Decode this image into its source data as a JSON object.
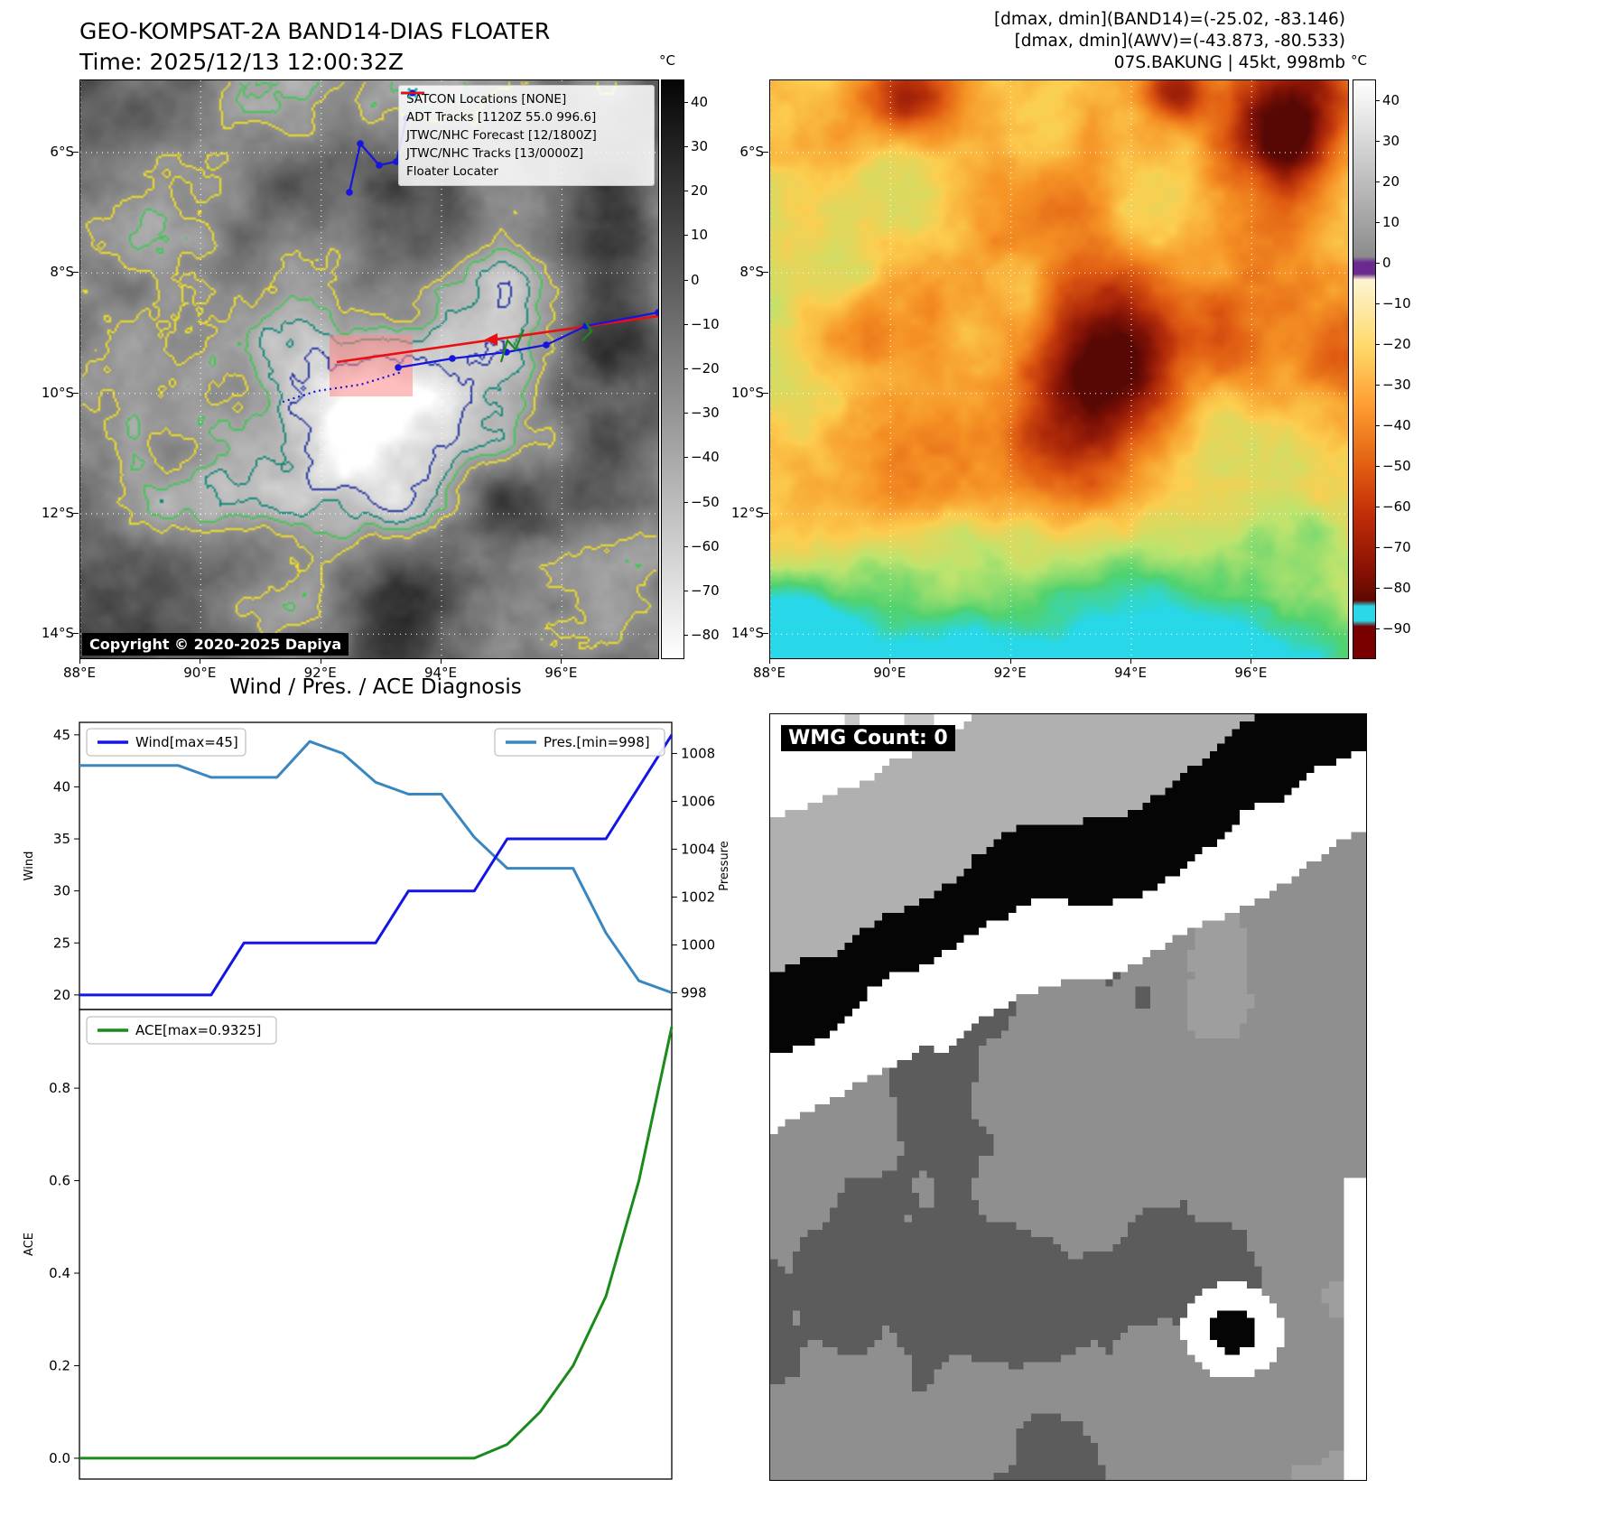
{
  "panel1": {
    "title": "GEO-KOMPSAT-2A BAND14-DIAS FLOATER",
    "time_line": "Time: 2025/12/13 12:00:32Z",
    "copyright": "Copyright © 2020-2025 Dapiya",
    "colorbar_unit": "°C",
    "colorbar_ticks": [
      40,
      30,
      20,
      10,
      0,
      -10,
      -20,
      -30,
      -40,
      -50,
      -60,
      -70,
      -80
    ],
    "x_tick_labels": [
      "88°E",
      "90°E",
      "92°E",
      "94°E",
      "96°E"
    ],
    "y_tick_labels": [
      "6°S",
      "8°S",
      "10°S",
      "12°S",
      "14°S"
    ],
    "contour_colors": [
      "#f0e020",
      "#3cc850",
      "#0e8676",
      "#1e30a0"
    ],
    "legend": [
      {
        "label": "SATCON Locations [NONE]",
        "marker": "x-marker",
        "color": "#2ab5b5"
      },
      {
        "label": "ADT Tracks [1120Z 55.0 996.6]",
        "marker": "solid-line",
        "color": "#1a8a1a"
      },
      {
        "label": "JTWC/NHC Forecast [12/1800Z]",
        "marker": "dotted-line",
        "color": "#1515dd"
      },
      {
        "label": "JTWC/NHC Tracks [13/0000Z]",
        "marker": "line-dot",
        "color": "#1515dd"
      },
      {
        "label": "Floater Locater",
        "marker": "solid-line",
        "color": "#e81010"
      }
    ]
  },
  "panel2": {
    "annotation_lines": [
      "[dmax, dmin](BAND14)=(-25.02, -83.146)",
      "[dmax, dmin](AWV)=(-43.873, -80.533)",
      "07S.BAKUNG | 45kt, 998mb"
    ],
    "colorbar_unit": "°C",
    "colorbar_ticks": [
      40,
      30,
      20,
      10,
      0,
      -10,
      -20,
      -30,
      -40,
      -50,
      -60,
      -70,
      -80,
      -90
    ],
    "x_tick_labels": [
      "88°E",
      "90°E",
      "92°E",
      "94°E",
      "96°E"
    ],
    "y_tick_labels": [
      "6°S",
      "8°S",
      "10°S",
      "12°S",
      "14°S"
    ]
  },
  "charts_title": "Wind / Pres. / ACE Diagnosis",
  "wmg_label": "WMG Count: 0",
  "chart_data": [
    {
      "type": "line",
      "title": "Wind / Pres. / ACE Diagnosis",
      "x": [
        0,
        1,
        2,
        3,
        4,
        5,
        6,
        7,
        8,
        9,
        10,
        11,
        12,
        13,
        14,
        15,
        16,
        17,
        18
      ],
      "series": [
        {
          "name": "Wind[max=45]",
          "axis": "left",
          "color": "#1414e6",
          "values": [
            20,
            20,
            20,
            20,
            20,
            25,
            25,
            25,
            25,
            25,
            30,
            30,
            30,
            35,
            35,
            35,
            35,
            40,
            45
          ]
        },
        {
          "name": "Pres.[min=998]",
          "axis": "right",
          "color": "#3a87c0",
          "values": [
            1007.5,
            1007.5,
            1007.5,
            1007.5,
            1007,
            1007,
            1007,
            1008.5,
            1008,
            1006.8,
            1006.3,
            1006.3,
            1004.5,
            1003.2,
            1003.2,
            1003.2,
            1000.5,
            998.5,
            998
          ]
        }
      ],
      "ylabel_left": "Wind",
      "ylabel_right": "Pressure",
      "yticks_left": [
        20,
        25,
        30,
        35,
        40,
        45
      ],
      "yticks_right": [
        998,
        1000,
        1002,
        1004,
        1006,
        1008
      ],
      "ylim_left": [
        18.6,
        46.2
      ],
      "ylim_right": [
        997.3,
        1009.3
      ],
      "legend_position": "upper-left / upper-right"
    },
    {
      "type": "line",
      "x": [
        0,
        1,
        2,
        3,
        4,
        5,
        6,
        7,
        8,
        9,
        10,
        11,
        12,
        13,
        14,
        15,
        16,
        17,
        18
      ],
      "series": [
        {
          "name": "ACE[max=0.9325]",
          "color": "#1a8a1a",
          "values": [
            0,
            0,
            0,
            0,
            0,
            0,
            0,
            0,
            0,
            0,
            0,
            0,
            0,
            0.03,
            0.1,
            0.2,
            0.35,
            0.6,
            0.9325
          ]
        }
      ],
      "ylabel": "ACE",
      "yticks": [
        0.0,
        0.2,
        0.4,
        0.6,
        0.8
      ],
      "ylim": [
        -0.045,
        0.97
      ],
      "legend_position": "upper-left"
    }
  ]
}
